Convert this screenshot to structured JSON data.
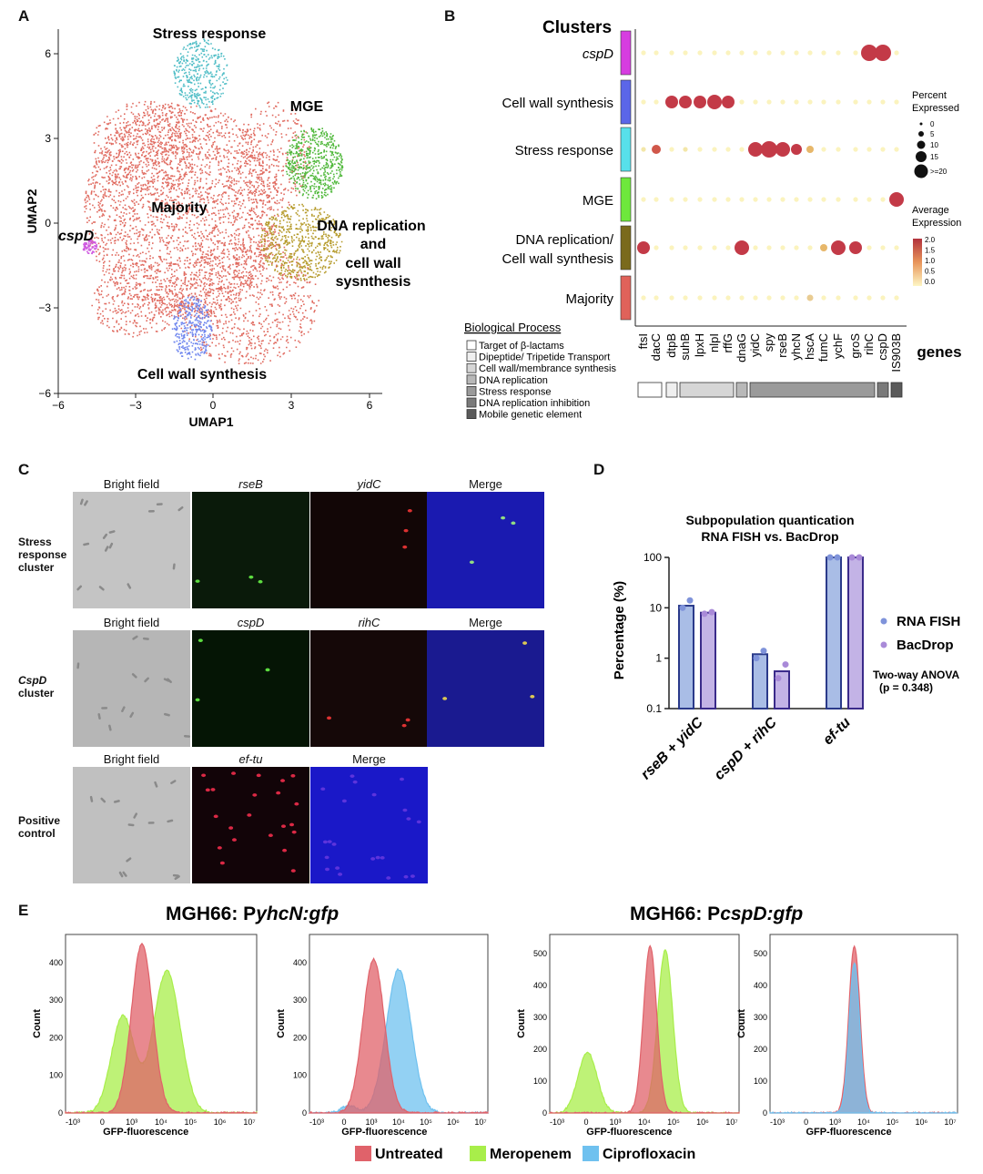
{
  "panel_labels": {
    "a": "A",
    "b": "B",
    "c": "C",
    "d": "D",
    "e": "E"
  },
  "umap": {
    "xlabel": "UMAP1",
    "ylabel": "UMAP2",
    "x_ticks": [
      "−6",
      "−3",
      "0",
      "3",
      "6"
    ],
    "y_ticks": [
      "6",
      "3",
      "0",
      "−3",
      "−6"
    ],
    "clusters": {
      "stress": "Stress response",
      "mge": "MGE",
      "majority": "Majority",
      "dna_1": "DNA replication",
      "dna_2": "and",
      "dna_3": "cell wall",
      "dna_4": "sysnthesis",
      "cspd": "cspD",
      "cellwall": "Cell wall synthesis"
    },
    "colors": {
      "majority": "#e06a5f",
      "mge": "#4fb83a",
      "dna": "#b59a2a",
      "stress": "#4fbdc6",
      "cellwall": "#6f86ee",
      "cspd": "#cf5ce0"
    }
  },
  "dotplot": {
    "clusters_title": "Clusters",
    "clusters": [
      {
        "label": "cspD",
        "italic": true,
        "color": "#d63de0"
      },
      {
        "label": "Cell wall synthesis",
        "color": "#5b66e8"
      },
      {
        "label": "Stress response",
        "color": "#57e0ea"
      },
      {
        "label": "MGE",
        "color": "#6ee83c"
      },
      {
        "label": "DNA replication/",
        "label2": "Cell wall synthesis",
        "color": "#7a6a1c"
      },
      {
        "label": "Majority",
        "color": "#e0625a"
      }
    ],
    "genes": [
      "ftsI",
      "dacC",
      "dtpB",
      "suhB",
      "lpxH",
      "nlpI",
      "rffG",
      "dnaG",
      "yidC",
      "spy",
      "rseB",
      "yhcN",
      "hscA",
      "fumC",
      "ychF",
      "groS",
      "rihC",
      "cspD",
      "IS903B"
    ],
    "genes_title": "genes",
    "size_legend_title_1": "Percent",
    "size_legend_title_2": "Expressed",
    "size_legend": [
      "0",
      "5",
      "10",
      "15",
      ">=20"
    ],
    "color_legend_title_1": "Average",
    "color_legend_title_2": "Expression",
    "color_legend_ticks": [
      "2.0",
      "1.5",
      "1.0",
      "0.5",
      "0.0"
    ],
    "process_title": "Biological Process",
    "processes": [
      {
        "label": "Target of β-lactams",
        "color": "#ffffff"
      },
      {
        "label": "Dipeptide/ Tripetide Transport",
        "color": "#efefef"
      },
      {
        "label": "Cell wall/membrance synthesis",
        "color": "#d6d6d6"
      },
      {
        "label": "DNA replication",
        "color": "#b8b8b8"
      },
      {
        "label": "Stress response",
        "color": "#9a9a9a"
      },
      {
        "label": "DNA replication inhibition",
        "color": "#7a7a7a"
      },
      {
        "label": "Mobile genetic element",
        "color": "#5a5a5a"
      }
    ]
  },
  "microscopy": {
    "rows": [
      {
        "label_1": "Stress",
        "label_2": "response",
        "label_3": "cluster",
        "headers": [
          "Bright field",
          "rseB",
          "yidC",
          "Merge"
        ]
      },
      {
        "label_1": "CspD",
        "label_2": "cluster",
        "label_3": "",
        "headers": [
          "Bright field",
          "cspD",
          "rihC",
          "Merge"
        ]
      },
      {
        "label_1": "Positive",
        "label_2": "control",
        "label_3": "",
        "headers": [
          "Bright field",
          "ef-tu",
          "Merge"
        ]
      }
    ]
  },
  "chart_data": [
    {
      "type": "bar",
      "title": "Subpopulation quantication",
      "subtitle": "RNA FISH vs. BacDrop",
      "ylabel": "Percentage (%)",
      "yscale": "log",
      "ylim": [
        0.1,
        100
      ],
      "y_ticks": [
        "100",
        "10",
        "1",
        "0.1"
      ],
      "categories": [
        "rseB + yidC",
        "cspD + rihC",
        "ef-tu"
      ],
      "series": [
        {
          "name": "RNA FISH",
          "color": "#a9bde6",
          "edge": "#2a3a8a",
          "dot": "#7f93da",
          "values": [
            11,
            1.2,
            100
          ],
          "points": [
            [
              10,
              14
            ],
            [
              1.0,
              1.4
            ],
            [
              100,
              100
            ]
          ]
        },
        {
          "name": "BacDrop",
          "color": "#c3b3e6",
          "edge": "#3a2a8a",
          "dot": "#a98ad8",
          "values": [
            8,
            0.55,
            100
          ],
          "points": [
            [
              7.6,
              8.2
            ],
            [
              0.4,
              0.75
            ],
            [
              100,
              100
            ]
          ]
        }
      ],
      "annotation_1": "Two-way ANOVA",
      "annotation_2": "(p = 0.348)"
    }
  ],
  "flow": {
    "title_left_prefix": "MGH66: P",
    "title_left_gene": "yhcN:gfp",
    "title_right_prefix": "MGH66: P",
    "title_right_gene": "cspD:gfp",
    "ylabel": "Count",
    "xlabel": "GFP-fluorescence",
    "x_ticks": [
      "-10³",
      "0",
      "10³",
      "10⁴",
      "10⁵",
      "10⁶",
      "10⁷"
    ],
    "plot1_y": [
      "400",
      "300",
      "200",
      "100",
      "0"
    ],
    "plot2_y": [
      "400",
      "300",
      "200",
      "100",
      "0"
    ],
    "plot3_y": [
      "500",
      "400",
      "300",
      "200",
      "100",
      "0"
    ],
    "plot4_y": [
      "500",
      "400",
      "300",
      "200",
      "100",
      "0"
    ],
    "legend": [
      {
        "label": "Untreated",
        "color": "#e0626a"
      },
      {
        "label": "Meropenem",
        "color": "#a8ee4a"
      },
      {
        "label": "Ciprofloxacin",
        "color": "#6fc1ef"
      }
    ]
  }
}
